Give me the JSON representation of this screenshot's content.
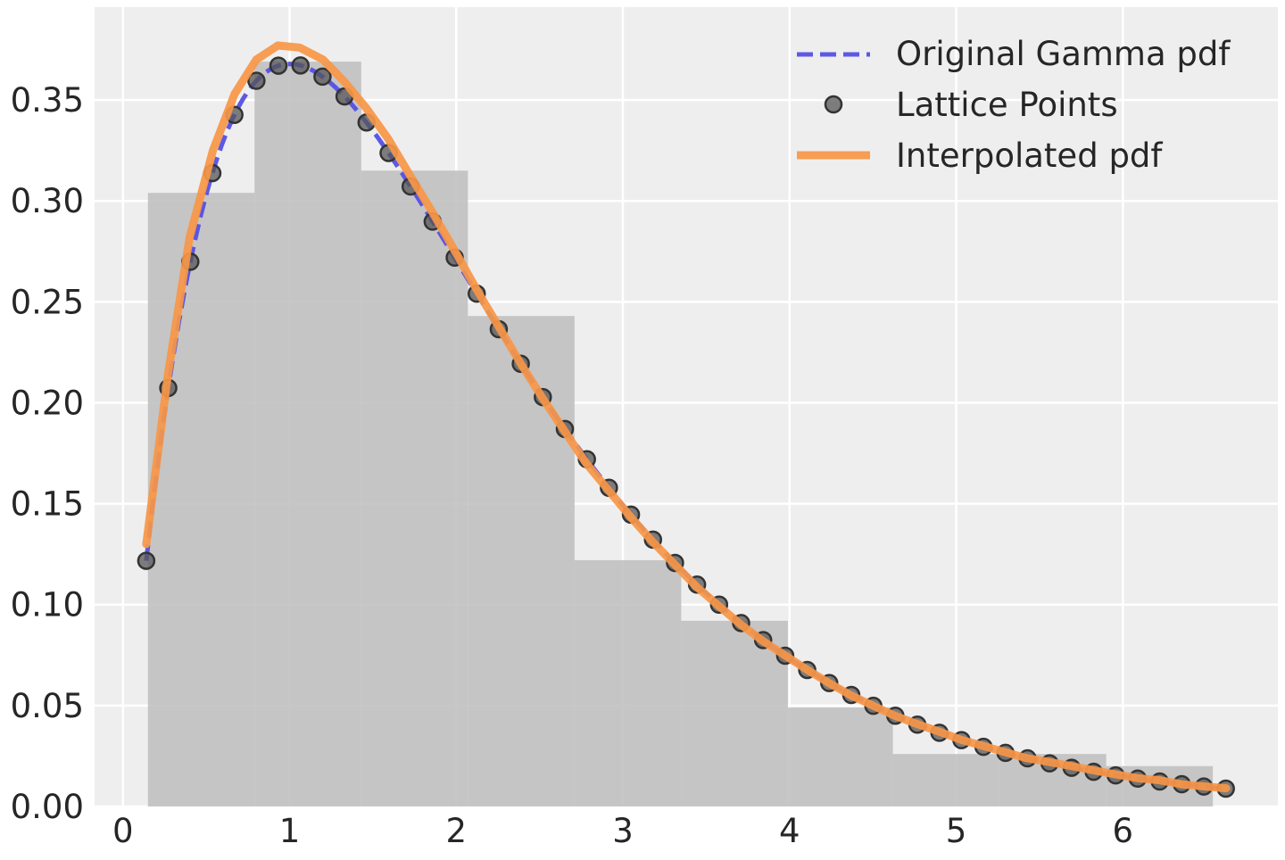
{
  "chart_data": {
    "type": "line",
    "title": "",
    "xlabel": "",
    "ylabel": "",
    "xlim": [
      -0.17,
      6.93
    ],
    "ylim": [
      0,
      0.396
    ],
    "grid": true,
    "legend_position": "top-right",
    "x_ticks": [
      {
        "value": 0,
        "label": "0"
      },
      {
        "value": 1,
        "label": "1"
      },
      {
        "value": 2,
        "label": "2"
      },
      {
        "value": 3,
        "label": "3"
      },
      {
        "value": 4,
        "label": "4"
      },
      {
        "value": 5,
        "label": "5"
      },
      {
        "value": 6,
        "label": "6"
      }
    ],
    "y_ticks": [
      {
        "value": 0,
        "label": "0.00"
      },
      {
        "value": 0.05,
        "label": "0.05"
      },
      {
        "value": 0.1,
        "label": "0.10"
      },
      {
        "value": 0.15,
        "label": "0.15"
      },
      {
        "value": 0.2,
        "label": "0.20"
      },
      {
        "value": 0.25,
        "label": "0.25"
      },
      {
        "value": 0.3,
        "label": "0.30"
      },
      {
        "value": 0.35,
        "label": "0.35"
      }
    ],
    "histogram": {
      "color": "#bfbfbf",
      "bins": [
        {
          "x0": 0.15,
          "x1": 0.79,
          "height": 0.304
        },
        {
          "x0": 0.79,
          "x1": 1.43,
          "height": 0.369
        },
        {
          "x0": 1.43,
          "x1": 2.07,
          "height": 0.315
        },
        {
          "x0": 2.07,
          "x1": 2.71,
          "height": 0.243
        },
        {
          "x0": 2.71,
          "x1": 3.35,
          "height": 0.122
        },
        {
          "x0": 3.35,
          "x1": 3.99,
          "height": 0.092
        },
        {
          "x0": 3.99,
          "x1": 4.62,
          "height": 0.049
        },
        {
          "x0": 4.62,
          "x1": 5.26,
          "height": 0.026
        },
        {
          "x0": 5.26,
          "x1": 5.9,
          "height": 0.026
        },
        {
          "x0": 5.9,
          "x1": 6.54,
          "height": 0.02
        }
      ]
    },
    "series": [
      {
        "name": "Original Gamma pdf",
        "style": "dashed",
        "color": "#5450e4",
        "curve": "gamma",
        "shape": 2,
        "scale": 1,
        "x_range": [
          0.14,
          6.62
        ]
      },
      {
        "name": "Lattice Points",
        "style": "markers",
        "color": "#555555",
        "curve": "gamma",
        "shape": 2,
        "scale": 1,
        "x_start": 0.14,
        "x_step": 0.1322,
        "count": 50
      },
      {
        "name": "Interpolated pdf",
        "style": "solid",
        "color": "#f79646",
        "points": [
          [
            0.14,
            0.13
          ],
          [
            0.27,
            0.214
          ],
          [
            0.4,
            0.282
          ],
          [
            0.54,
            0.325
          ],
          [
            0.67,
            0.353
          ],
          [
            0.8,
            0.37
          ],
          [
            0.93,
            0.377
          ],
          [
            1.06,
            0.376
          ],
          [
            1.2,
            0.37
          ],
          [
            1.33,
            0.359
          ],
          [
            1.46,
            0.346
          ],
          [
            1.59,
            0.331
          ],
          [
            1.72,
            0.313
          ],
          [
            1.86,
            0.294
          ],
          [
            2.0,
            0.274
          ],
          [
            2.13,
            0.255
          ],
          [
            2.26,
            0.237
          ],
          [
            2.39,
            0.219
          ],
          [
            2.52,
            0.202
          ],
          [
            2.65,
            0.186
          ],
          [
            2.78,
            0.17
          ],
          [
            2.92,
            0.156
          ],
          [
            3.05,
            0.143
          ],
          [
            3.18,
            0.131
          ],
          [
            3.31,
            0.12
          ],
          [
            3.44,
            0.109
          ],
          [
            3.58,
            0.099
          ],
          [
            3.71,
            0.09
          ],
          [
            3.84,
            0.082
          ],
          [
            3.97,
            0.075
          ],
          [
            4.1,
            0.068
          ],
          [
            4.24,
            0.061
          ],
          [
            4.37,
            0.055
          ],
          [
            4.5,
            0.05
          ],
          [
            4.63,
            0.045
          ],
          [
            4.76,
            0.041
          ],
          [
            4.9,
            0.037
          ],
          [
            5.03,
            0.033
          ],
          [
            5.16,
            0.03
          ],
          [
            5.29,
            0.027
          ],
          [
            5.42,
            0.024
          ],
          [
            5.56,
            0.022
          ],
          [
            5.69,
            0.02
          ],
          [
            5.82,
            0.018
          ],
          [
            5.95,
            0.016
          ],
          [
            6.09,
            0.014
          ],
          [
            6.22,
            0.013
          ],
          [
            6.35,
            0.011
          ],
          [
            6.48,
            0.01
          ],
          [
            6.62,
            0.009
          ]
        ]
      }
    ]
  }
}
